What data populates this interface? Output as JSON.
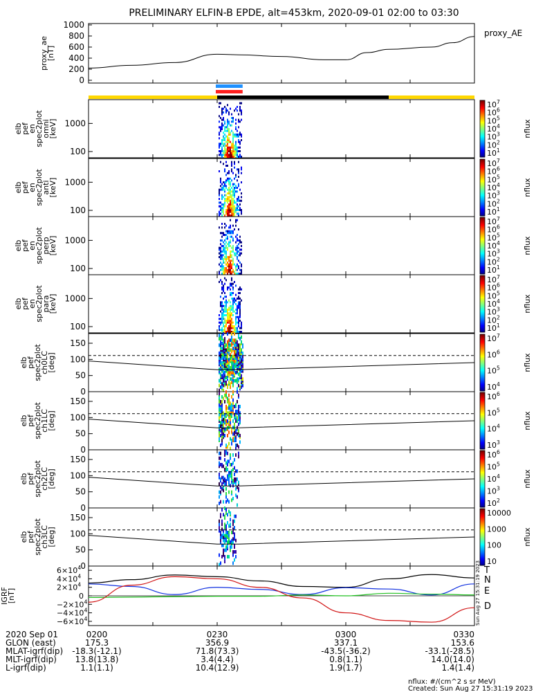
{
  "title": "PRELIMINARY ELFIN-B EPDE, alt=453km, 2020-09-01 02:00 to 03:30",
  "colors": {
    "orbit_yellow": "#FFD700",
    "orbit_black": "#000000",
    "bar_blue": "#1E90FF",
    "bar_red": "#FF2020",
    "component_black": "#000000",
    "component_blue": "#1030E0",
    "component_green": "#20C020",
    "component_red": "#D01010"
  },
  "proxy_ae": {
    "ylabel": "proxy_ae\n[nT]",
    "yticks": [
      "1000",
      "800",
      "600",
      "400",
      "200",
      "0"
    ],
    "legend": "proxy_AE"
  },
  "spectra_panels": [
    {
      "ylabel": "elb\npef\nen\nspec2plot\nomni\n[keV]",
      "yticks": [
        "1000",
        "100"
      ],
      "cbar_ticks": [
        "10^7",
        "10^6",
        "10^5",
        "10^4",
        "10^3",
        "10^2",
        "10^1"
      ],
      "cbar_label": "nflux"
    },
    {
      "ylabel": "elb\npef\nen\nspec2plot\nanti\n[keV]",
      "yticks": [
        "1000",
        "100"
      ],
      "cbar_ticks": [
        "10^7",
        "10^6",
        "10^5",
        "10^4",
        "10^3",
        "10^2",
        "10^1"
      ],
      "cbar_label": "nflux"
    },
    {
      "ylabel": "elb\npef\nen\nspec2plot\nperp\n[keV]",
      "yticks": [
        "1000",
        "100"
      ],
      "cbar_ticks": [
        "10^7",
        "10^6",
        "10^5",
        "10^4",
        "10^3",
        "10^2",
        "10^1"
      ],
      "cbar_label": "nflux"
    },
    {
      "ylabel": "elb\npef\nen\nspec2plot\npara\n[keV]",
      "yticks": [
        "1000",
        "100"
      ],
      "cbar_ticks": [
        "10^7",
        "10^6",
        "10^5",
        "10^4",
        "10^3",
        "10^2",
        "10^1"
      ],
      "cbar_label": "nflux"
    }
  ],
  "pitch_panels": [
    {
      "ylabel": "elb\npef\nspec2plot\nch0LC\n[deg]",
      "yticks": [
        "150",
        "100",
        "50",
        "0"
      ],
      "cbar_ticks": [
        "10^7",
        "10^6",
        "10^5",
        "10^4"
      ],
      "cbar_label": "nflux"
    },
    {
      "ylabel": "elb\npef\nspec2plot\nch1LC\n[deg]",
      "yticks": [
        "150",
        "100",
        "50",
        "0"
      ],
      "cbar_ticks": [
        "10^6",
        "10^5",
        "10^4",
        "10^3"
      ],
      "cbar_label": "nflux"
    },
    {
      "ylabel": "elb\npef\nspec2plot\nch2LC\n[deg]",
      "yticks": [
        "150",
        "100",
        "50",
        "0"
      ],
      "cbar_ticks": [
        "10^6",
        "10^5",
        "10^4",
        "10^3",
        "10^2"
      ],
      "cbar_label": "nflux"
    },
    {
      "ylabel": "elb\npef\nspec2plot\nch3LC\n[deg]",
      "yticks": [
        "150",
        "100",
        "50",
        "0"
      ],
      "cbar_ticks": [
        "10000",
        "1000",
        "100",
        "10"
      ],
      "cbar_label": "nflux"
    }
  ],
  "igrf": {
    "ylabel": "IGRF\n[nT]",
    "yticks": [
      "6×10^4",
      "4×10^4",
      "2×10^4",
      "0",
      "−2×10^4",
      "−4×10^4",
      "−6×10^4"
    ],
    "legend": [
      "T",
      "N",
      "E",
      "D"
    ],
    "side_note": "Sun Aug 27 15:31:19 2023"
  },
  "ephemeris": {
    "rows": [
      [
        "2020 Sep 01",
        "0200",
        "0230",
        "0300",
        "0330"
      ],
      [
        "GLON (east)",
        "175.3",
        "356.9",
        "337.1",
        "153.6"
      ],
      [
        "MLAT-igrf(dip)",
        "-18.3(-12.1)",
        "71.8(73.3)",
        "-43.5(-36.2)",
        "-33.1(-28.5)"
      ],
      [
        "MLT-igrf(dip)",
        "13.8(13.8)",
        "3.4(4.4)",
        "0.8(1.1)",
        "14.0(14.0)"
      ],
      [
        "L-igrf(dip)",
        "1.1(1.1)",
        "10.4(12.9)",
        "1.9(1.7)",
        "1.4(1.4)"
      ]
    ]
  },
  "footer": {
    "units": "nflux: #/(cm^2 s sr MeV)",
    "created": "Created: Sun Aug 27 15:31:19 2023"
  },
  "chart_data": {
    "type": "line",
    "x_unit": "UT",
    "x_ticks": [
      "0200",
      "0230",
      "0300",
      "0330"
    ],
    "xlim": [
      "02:00",
      "03:30"
    ],
    "proxy_ae": {
      "ylim": [
        0,
        1000
      ],
      "x": [
        "02:00",
        "02:10",
        "02:20",
        "02:30",
        "02:35",
        "02:45",
        "02:55",
        "03:00",
        "03:05",
        "03:10",
        "03:20",
        "03:25",
        "03:30"
      ],
      "y": [
        220,
        270,
        320,
        470,
        460,
        430,
        370,
        370,
        500,
        560,
        600,
        680,
        790
      ]
    },
    "orbit_bar": [
      {
        "from": "02:00",
        "to": "02:30",
        "color": "yellow"
      },
      {
        "from": "02:30",
        "to": "03:10",
        "color": "black"
      },
      {
        "from": "03:10",
        "to": "03:30",
        "color": "yellow"
      }
    ],
    "science_zone": {
      "from": "02:30",
      "to": "02:34"
    },
    "spectrogram_energy_ylim_keV": [
      60,
      7000
    ],
    "pitch_ylim_deg": [
      0,
      180
    ],
    "pitch_loss_cone": {
      "solid_x": [
        "02:00",
        "02:30",
        "02:35",
        "03:30"
      ],
      "solid_y": [
        95,
        68,
        68,
        90
      ],
      "dashed_y": 112
    },
    "igrf": {
      "ylim": [
        -70000,
        70000
      ],
      "series": [
        {
          "name": "T",
          "x": [
            "02:00",
            "02:10",
            "02:20",
            "02:30",
            "02:40",
            "02:50",
            "03:00",
            "03:10",
            "03:20",
            "03:30"
          ],
          "y": [
            30000,
            38000,
            49000,
            45000,
            35000,
            22000,
            20000,
            40000,
            50000,
            42000
          ]
        },
        {
          "name": "N",
          "x": [
            "02:00",
            "02:10",
            "02:20",
            "02:30",
            "02:40",
            "02:50",
            "03:00",
            "03:10",
            "03:20",
            "03:30"
          ],
          "y": [
            28000,
            22000,
            3000,
            20000,
            15000,
            3000,
            19000,
            16000,
            2000,
            28000
          ]
        },
        {
          "name": "E",
          "x": [
            "02:00",
            "02:10",
            "02:20",
            "02:30",
            "02:40",
            "02:50",
            "03:00",
            "03:10",
            "03:20",
            "03:30"
          ],
          "y": [
            -4000,
            -3000,
            -2000,
            -1000,
            -1000,
            2000,
            0,
            6000,
            4000,
            2000
          ]
        },
        {
          "name": "D",
          "x": [
            "02:00",
            "02:10",
            "02:20",
            "02:30",
            "02:40",
            "02:50",
            "03:00",
            "03:10",
            "03:20",
            "03:30"
          ],
          "y": [
            -15000,
            25000,
            45000,
            40000,
            20000,
            -5000,
            -40000,
            -58000,
            -62000,
            -28000
          ]
        }
      ]
    }
  }
}
